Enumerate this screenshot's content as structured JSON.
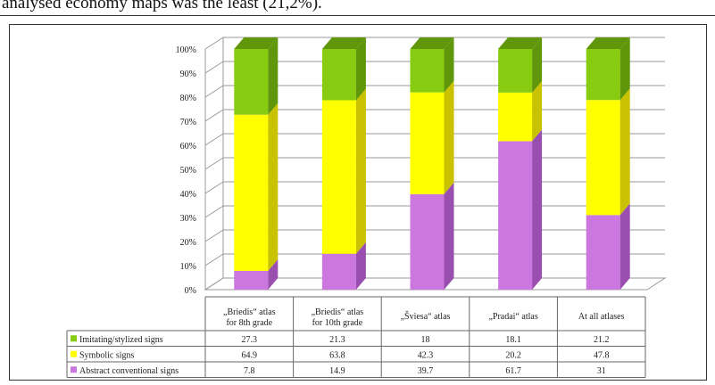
{
  "caption": "analysed economy maps was the least (21,2%).",
  "chart_data": {
    "type": "bar",
    "stacked": true,
    "three_d": true,
    "categories": [
      [
        "„Briedis“ atlas",
        "for 8th grade"
      ],
      [
        "„Briedis“ atlas",
        "for 10th grade"
      ],
      [
        "„Šviesa“ atlas"
      ],
      [
        "„Pradai“ atlas"
      ],
      [
        "At all atlases"
      ]
    ],
    "y_ticks": [
      "0%",
      "10%",
      "20%",
      "30%",
      "40%",
      "50%",
      "60%",
      "70%",
      "80%",
      "90%",
      "100%"
    ],
    "ylim": [
      0,
      100
    ],
    "grid": true,
    "legend": "data table below chart",
    "series": [
      {
        "name": "Abstract conventional signs",
        "color": "#cc77e0",
        "side_color": "#9a4fb0",
        "values": [
          7.8,
          14.9,
          39.7,
          61.7,
          31
        ]
      },
      {
        "name": "Symbolic signs",
        "color": "#ffff00",
        "side_color": "#c9c200",
        "values": [
          64.9,
          63.8,
          42.3,
          20.2,
          47.8
        ]
      },
      {
        "name": "Imitating/stylized signs",
        "color": "#88cc11",
        "side_color": "#5f960a",
        "values": [
          27.3,
          21.3,
          18,
          18.1,
          21.2
        ]
      }
    ],
    "table_rows": [
      {
        "label": "Imitating/stylized signs",
        "color": "#88cc11",
        "cells": [
          "27.3",
          "21.3",
          "18",
          "18.1",
          "21.2"
        ]
      },
      {
        "label": "Symbolic signs",
        "color": "#ffff00",
        "cells": [
          "64.9",
          "63.8",
          "42.3",
          "20.2",
          "47.8"
        ]
      },
      {
        "label": "Abstract conventional signs",
        "color": "#cc77e0",
        "cells": [
          "7.8",
          "14.9",
          "39.7",
          "61.7",
          "31"
        ]
      }
    ]
  }
}
